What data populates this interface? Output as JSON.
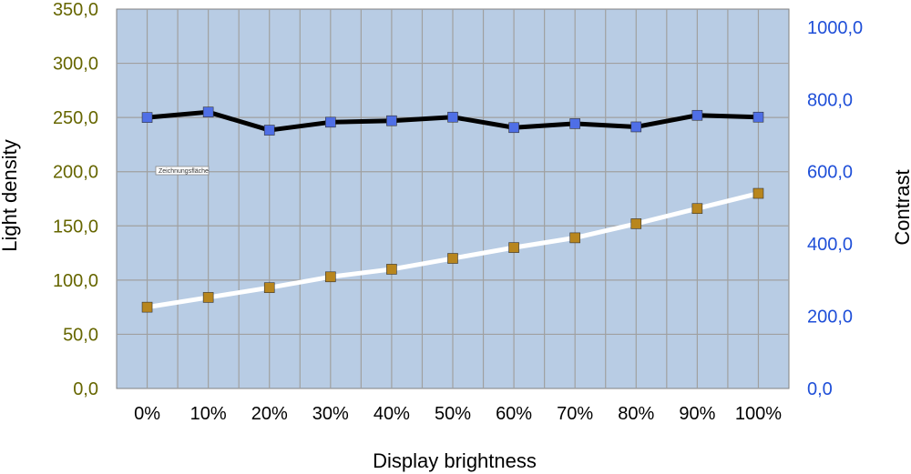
{
  "chart_data": {
    "type": "line",
    "xlabel": "Display brightness",
    "ylabel_left": "Light density",
    "ylabel_right": "Contrast",
    "categories": [
      "0%",
      "10%",
      "20%",
      "30%",
      "40%",
      "50%",
      "60%",
      "70%",
      "80%",
      "90%",
      "100%"
    ],
    "y_left": {
      "min": 0,
      "max": 350,
      "step": 50,
      "tick_labels": [
        "0,0",
        "50,0",
        "100,0",
        "150,0",
        "200,0",
        "250,0",
        "300,0",
        "350,0"
      ],
      "color": "#666600"
    },
    "y_right": {
      "min": 0,
      "max": 1050,
      "tick_values": [
        0,
        200,
        400,
        600,
        800,
        1000
      ],
      "tick_labels": [
        "0,0",
        "200,0",
        "400,0",
        "600,0",
        "800,0",
        "1000,0"
      ],
      "color": "#1f4fd8"
    },
    "series": [
      {
        "axis": "right",
        "line_color": "#000000",
        "marker_color": "#4f6fe6",
        "values": [
          750,
          765,
          715,
          737,
          741,
          751,
          722,
          733,
          724,
          756,
          751
        ]
      },
      {
        "axis": "left",
        "line_color": "#ffffff",
        "marker_color": "#b8861e",
        "values": [
          75,
          84,
          93,
          103,
          110,
          120,
          130,
          139,
          152,
          166,
          180
        ]
      }
    ],
    "plot_background": "#b8cce4",
    "grid": true,
    "tooltip_label": "Zeichnungsfläche"
  }
}
